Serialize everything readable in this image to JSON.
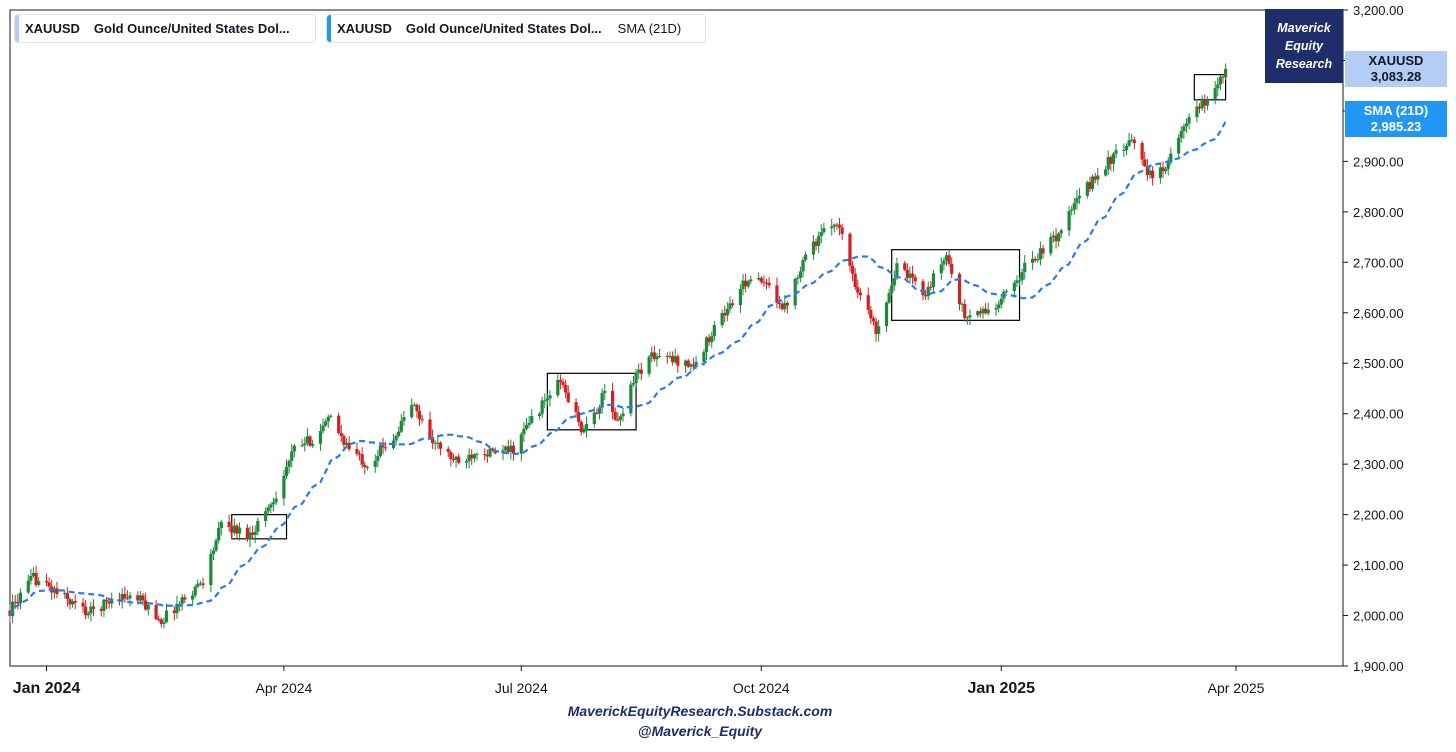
{
  "legend": {
    "main": {
      "symbol": "XAUUSD",
      "name": "Gold Ounce/United States Dol...",
      "bar_color": "#b3cdf5"
    },
    "sma": {
      "symbol": "XAUUSD",
      "name": "Gold Ounce/United States Dol...",
      "indicator": "SMA (21D)",
      "bar_color": "#2196f3"
    }
  },
  "logo": {
    "line1": "Maverick",
    "line2": "Equity",
    "line3": "Research"
  },
  "price_tags": {
    "xauusd": {
      "label": "XAUUSD",
      "value": "3,083.28",
      "color": "#b3cdf5"
    },
    "sma": {
      "label": "SMA (21D)",
      "value": "2,985.23",
      "color": "#2196f3"
    }
  },
  "footer": {
    "line1": "MaverickEquityResearch.Substack.com",
    "line2": "@Maverick_Equity"
  },
  "colors": {
    "up": "#1b8a3a",
    "down": "#d0201f",
    "sma": "#2c7be5",
    "axis": "#131722"
  },
  "chart_data": {
    "type": "candlestick",
    "title": "",
    "xlabel": "",
    "ylabel": "",
    "x_range": [
      "2023-12-18",
      "2025-05-12"
    ],
    "ylim": [
      1900,
      3200
    ],
    "y_ticks": [
      1900,
      2000,
      2100,
      2200,
      2300,
      2400,
      2500,
      2600,
      2700,
      2800,
      2900,
      3000,
      3100,
      3200
    ],
    "y_tick_labels": [
      "1,900.00",
      "2,000.00",
      "2,100.00",
      "2,200.00",
      "2,300.00",
      "2,400.00",
      "2,500.00",
      "2,600.00",
      "2,700.00",
      "2,800.00",
      "2,900.00",
      "3,000.00",
      "3,100.00",
      "3,200.00"
    ],
    "x_ticks": [
      {
        "label": "Jan 2024",
        "date": "2024-01-01",
        "bold": true
      },
      {
        "label": "Apr 2024",
        "date": "2024-04-01",
        "bold": false
      },
      {
        "label": "Jul 2024",
        "date": "2024-07-01",
        "bold": false
      },
      {
        "label": "Oct 2024",
        "date": "2024-10-01",
        "bold": false
      },
      {
        "label": "Jan 2025",
        "date": "2025-01-01",
        "bold": true
      },
      {
        "label": "Apr 2025",
        "date": "2025-04-01",
        "bold": false
      }
    ],
    "price_anchors": [
      [
        "2023-12-18",
        2010
      ],
      [
        "2023-12-27",
        2075
      ],
      [
        "2024-01-05",
        2045
      ],
      [
        "2024-01-17",
        2005
      ],
      [
        "2024-01-29",
        2040
      ],
      [
        "2024-02-06",
        2030
      ],
      [
        "2024-02-14",
        1990
      ],
      [
        "2024-02-23",
        2035
      ],
      [
        "2024-03-01",
        2070
      ],
      [
        "2024-03-08",
        2180
      ],
      [
        "2024-03-19",
        2160
      ],
      [
        "2024-03-28",
        2230
      ],
      [
        "2024-04-05",
        2330
      ],
      [
        "2024-04-12",
        2350
      ],
      [
        "2024-04-19",
        2390
      ],
      [
        "2024-04-26",
        2330
      ],
      [
        "2024-05-03",
        2300
      ],
      [
        "2024-05-14",
        2360
      ],
      [
        "2024-05-20",
        2420
      ],
      [
        "2024-05-29",
        2340
      ],
      [
        "2024-06-07",
        2300
      ],
      [
        "2024-06-14",
        2330
      ],
      [
        "2024-06-21",
        2320
      ],
      [
        "2024-06-28",
        2330
      ],
      [
        "2024-07-05",
        2390
      ],
      [
        "2024-07-16",
        2465
      ],
      [
        "2024-07-25",
        2360
      ],
      [
        "2024-08-02",
        2440
      ],
      [
        "2024-08-07",
        2380
      ],
      [
        "2024-08-13",
        2470
      ],
      [
        "2024-08-20",
        2515
      ],
      [
        "2024-08-30",
        2505
      ],
      [
        "2024-09-06",
        2495
      ],
      [
        "2024-09-13",
        2575
      ],
      [
        "2024-09-20",
        2620
      ],
      [
        "2024-09-26",
        2670
      ],
      [
        "2024-10-04",
        2650
      ],
      [
        "2024-10-10",
        2610
      ],
      [
        "2024-10-18",
        2720
      ],
      [
        "2024-10-30",
        2785
      ],
      [
        "2024-11-06",
        2660
      ],
      [
        "2024-11-14",
        2565
      ],
      [
        "2024-11-22",
        2690
      ],
      [
        "2024-12-03",
        2640
      ],
      [
        "2024-12-11",
        2715
      ],
      [
        "2024-12-18",
        2590
      ],
      [
        "2024-12-30",
        2610
      ],
      [
        "2025-01-10",
        2690
      ],
      [
        "2025-01-22",
        2750
      ],
      [
        "2025-01-31",
        2830
      ],
      [
        "2025-02-11",
        2900
      ],
      [
        "2025-02-21",
        2940
      ],
      [
        "2025-02-28",
        2860
      ],
      [
        "2025-03-07",
        2910
      ],
      [
        "2025-03-14",
        2985
      ],
      [
        "2025-03-21",
        3020
      ],
      [
        "2025-03-28",
        3083.28
      ]
    ],
    "last_close": 3083.28,
    "sma_period": 21,
    "sma_last": 2985.23,
    "highlight_boxes": [
      {
        "from": "2024-03-12",
        "to": "2024-04-02",
        "low": 2152,
        "high": 2200
      },
      {
        "from": "2024-07-11",
        "to": "2024-08-14",
        "low": 2368,
        "high": 2480
      },
      {
        "from": "2024-11-20",
        "to": "2025-01-08",
        "low": 2585,
        "high": 2725
      },
      {
        "from": "2025-03-16",
        "to": "2025-03-28",
        "low": 3022,
        "high": 3072
      }
    ]
  }
}
